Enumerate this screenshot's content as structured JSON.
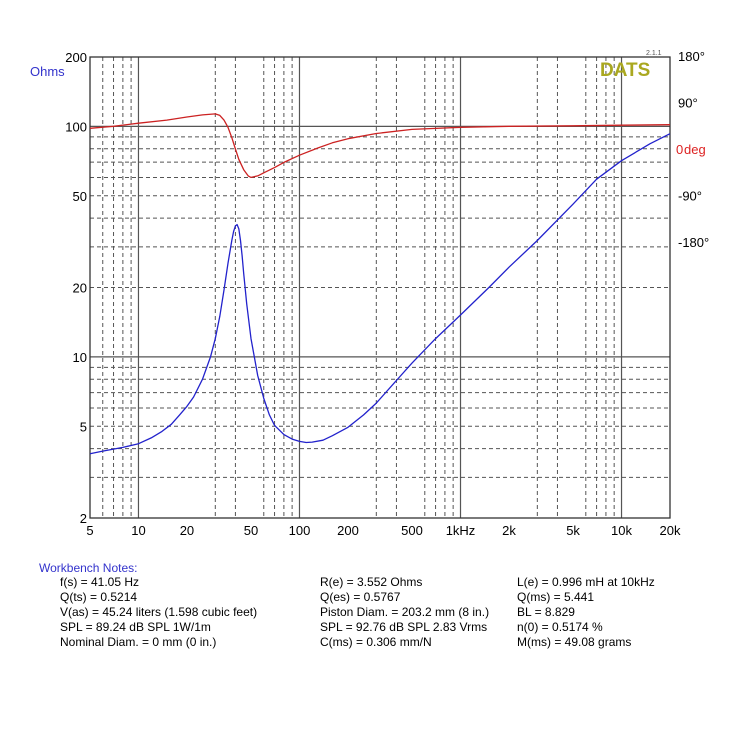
{
  "chart_data": {
    "type": "line",
    "logo": "DATS",
    "version": "2.1.1",
    "xscale": "log",
    "xlim": [
      5,
      20000
    ],
    "x_ticks": [
      {
        "value": 5,
        "label": "5"
      },
      {
        "value": 10,
        "label": "10"
      },
      {
        "value": 20,
        "label": "20"
      },
      {
        "value": 50,
        "label": "50"
      },
      {
        "value": 100,
        "label": "100"
      },
      {
        "value": 200,
        "label": "200"
      },
      {
        "value": 500,
        "label": "500"
      },
      {
        "value": 1000,
        "label": "1kHz"
      },
      {
        "value": 2000,
        "label": "2k"
      },
      {
        "value": 5000,
        "label": "5k"
      },
      {
        "value": 10000,
        "label": "10k"
      },
      {
        "value": 20000,
        "label": "20k"
      }
    ],
    "y_left": {
      "label": "Ohms",
      "scale": "log",
      "lim": [
        2,
        200
      ],
      "ticks": [
        {
          "value": 2,
          "label": "2"
        },
        {
          "value": 5,
          "label": "5"
        },
        {
          "value": 10,
          "label": "10"
        },
        {
          "value": 20,
          "label": "20"
        },
        {
          "value": 50,
          "label": "50"
        },
        {
          "value": 100,
          "label": "100"
        },
        {
          "value": 200,
          "label": "200"
        }
      ]
    },
    "y_right": {
      "label": "deg",
      "ticks": [
        {
          "value": 180,
          "label": "180°"
        },
        {
          "value": 90,
          "label": "90°"
        },
        {
          "value": 0,
          "label": "0"
        },
        {
          "value": -90,
          "label": "-90°"
        },
        {
          "value": -180,
          "label": "-180°"
        }
      ]
    },
    "series": [
      {
        "color": "#2222cc",
        "axis": "left",
        "x": [
          5,
          6,
          8,
          10,
          12,
          14,
          16,
          18,
          20,
          22,
          25,
          28,
          30,
          32,
          34,
          36,
          38,
          39,
          40,
          41,
          42,
          43,
          44,
          45,
          47,
          50,
          55,
          60,
          65,
          70,
          80,
          90,
          100,
          110,
          120,
          140,
          160,
          200,
          250,
          300,
          400,
          500,
          700,
          1000,
          1500,
          2000,
          3000,
          5000,
          7000,
          10000,
          15000,
          20000
        ],
        "y": [
          3.8,
          3.9,
          4.05,
          4.2,
          4.45,
          4.75,
          5.1,
          5.6,
          6.1,
          6.7,
          8.0,
          10.0,
          12.0,
          15.0,
          19.5,
          25.5,
          32.0,
          35.0,
          37.0,
          37.5,
          36.0,
          32.0,
          27.5,
          23.0,
          17.0,
          12.0,
          8.3,
          6.6,
          5.6,
          5.05,
          4.6,
          4.4,
          4.3,
          4.25,
          4.27,
          4.35,
          4.55,
          4.95,
          5.6,
          6.3,
          7.9,
          9.4,
          12.0,
          15.2,
          20.0,
          24.5,
          32.0,
          46.0,
          59.0,
          71.0,
          84.0,
          93.0
        ]
      },
      {
        "color": "#cc2222",
        "axis": "right",
        "x": [
          5,
          7,
          10,
          15,
          20,
          25,
          30,
          32,
          34,
          36,
          38,
          40,
          42,
          45,
          48,
          50,
          55,
          60,
          70,
          80,
          100,
          130,
          160,
          200,
          300,
          500,
          1000,
          2000,
          5000,
          10000,
          20000
        ],
        "y": [
          40,
          44,
          50,
          56,
          62,
          66,
          68,
          65,
          56,
          42,
          22,
          0,
          -20,
          -40,
          -52,
          -55,
          -52,
          -46,
          -36,
          -26,
          -12,
          2,
          12,
          20,
          30,
          38,
          42,
          44,
          45,
          46,
          47
        ]
      }
    ]
  },
  "notes": {
    "title": "Workbench Notes:",
    "col1": [
      "f(s) = 41.05 Hz",
      "Q(ts) = 0.5214",
      "V(as) = 45.24 liters  (1.598 cubic feet)",
      "SPL = 89.24 dB SPL 1W/1m",
      "Nominal Diam. = 0 mm (0 in.)"
    ],
    "col2": [
      "R(e) = 3.552 Ohms",
      "Q(es) = 0.5767",
      "Piston Diam. = 203.2 mm (8 in.)",
      "SPL = 92.76 dB SPL 2.83 Vrms",
      "C(ms) = 0.306 mm/N"
    ],
    "col3": [
      "L(e) = 0.996 mH at 10kHz",
      "Q(ms) = 5.441",
      "BL = 8.829",
      "n(0) = 0.5174 %",
      "M(ms) = 49.08 grams"
    ]
  }
}
